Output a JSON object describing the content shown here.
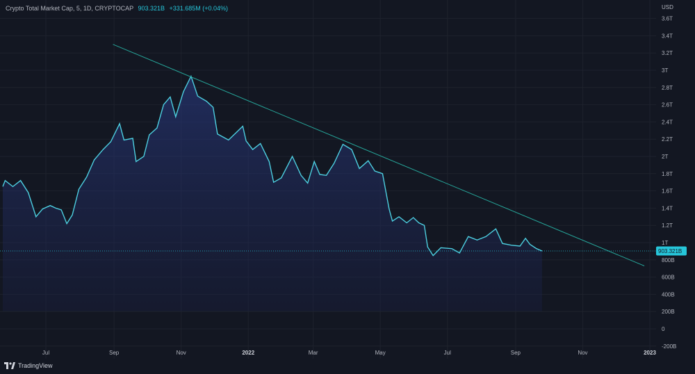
{
  "header": {
    "symbol": "Crypto Total Market Cap, 5, 1D, CRYPTOCAP",
    "value": "903.321B",
    "change": "+331.685M (+0.04%)"
  },
  "brand": {
    "name": "TradingView"
  },
  "colors": {
    "background": "#131722",
    "line": "#4dd0e1",
    "trendline": "#26a69a",
    "price_tag": "#26c6da"
  },
  "chart_data": {
    "type": "area",
    "title": "Crypto Total Market Cap",
    "currency_label": "USD",
    "x_ticks": [
      "Jul",
      "Sep",
      "Nov",
      "2022",
      "Mar",
      "May",
      "Jul",
      "Sep",
      "Nov",
      "2023"
    ],
    "y_ticks": [
      "3.6T",
      "3.4T",
      "3.2T",
      "3T",
      "2.8T",
      "2.6T",
      "2.4T",
      "2.2T",
      "2T",
      "1.8T",
      "1.6T",
      "1.4T",
      "1.2T",
      "1T",
      "800B",
      "600B",
      "400B",
      "200B",
      "0",
      "-200B"
    ],
    "ylim": [
      -200,
      3700
    ],
    "unit": "B USD",
    "last_value_label": "903.321B",
    "last_value": 903.321,
    "series": [
      {
        "values": [
          [
            "2021-05-20",
            1650
          ],
          [
            "2021-05-25",
            1720
          ],
          [
            "2021-06-01",
            1650
          ],
          [
            "2021-06-08",
            1720
          ],
          [
            "2021-06-15",
            1580
          ],
          [
            "2021-06-22",
            1300
          ],
          [
            "2021-06-28",
            1390
          ],
          [
            "2021-07-05",
            1430
          ],
          [
            "2021-07-10",
            1400
          ],
          [
            "2021-07-15",
            1380
          ],
          [
            "2021-07-20",
            1220
          ],
          [
            "2021-07-25",
            1320
          ],
          [
            "2021-07-31",
            1620
          ],
          [
            "2021-08-07",
            1760
          ],
          [
            "2021-08-14",
            1960
          ],
          [
            "2021-08-22",
            2080
          ],
          [
            "2021-08-29",
            2170
          ],
          [
            "2021-09-06",
            2380
          ],
          [
            "2021-09-10",
            2190
          ],
          [
            "2021-09-18",
            2210
          ],
          [
            "2021-09-21",
            1940
          ],
          [
            "2021-09-28",
            2000
          ],
          [
            "2021-10-03",
            2250
          ],
          [
            "2021-10-10",
            2330
          ],
          [
            "2021-10-16",
            2600
          ],
          [
            "2021-10-22",
            2690
          ],
          [
            "2021-10-27",
            2460
          ],
          [
            "2021-11-03",
            2750
          ],
          [
            "2021-11-10",
            2930
          ],
          [
            "2021-11-16",
            2700
          ],
          [
            "2021-11-24",
            2640
          ],
          [
            "2021-11-30",
            2570
          ],
          [
            "2021-12-04",
            2260
          ],
          [
            "2021-12-14",
            2190
          ],
          [
            "2021-12-27",
            2350
          ],
          [
            "2021-12-30",
            2180
          ],
          [
            "2022-01-05",
            2080
          ],
          [
            "2022-01-12",
            2150
          ],
          [
            "2022-01-20",
            1940
          ],
          [
            "2022-01-24",
            1700
          ],
          [
            "2022-01-31",
            1750
          ],
          [
            "2022-02-10",
            2000
          ],
          [
            "2022-02-18",
            1780
          ],
          [
            "2022-02-24",
            1690
          ],
          [
            "2022-03-02",
            1940
          ],
          [
            "2022-03-07",
            1790
          ],
          [
            "2022-03-13",
            1780
          ],
          [
            "2022-03-20",
            1920
          ],
          [
            "2022-03-28",
            2140
          ],
          [
            "2022-04-05",
            2080
          ],
          [
            "2022-04-12",
            1860
          ],
          [
            "2022-04-20",
            1950
          ],
          [
            "2022-04-26",
            1830
          ],
          [
            "2022-05-03",
            1800
          ],
          [
            "2022-05-09",
            1390
          ],
          [
            "2022-05-12",
            1250
          ],
          [
            "2022-05-18",
            1300
          ],
          [
            "2022-05-25",
            1230
          ],
          [
            "2022-05-31",
            1290
          ],
          [
            "2022-06-05",
            1230
          ],
          [
            "2022-06-10",
            1200
          ],
          [
            "2022-06-13",
            950
          ],
          [
            "2022-06-18",
            850
          ],
          [
            "2022-06-25",
            940
          ],
          [
            "2022-07-05",
            930
          ],
          [
            "2022-07-12",
            880
          ],
          [
            "2022-07-20",
            1070
          ],
          [
            "2022-07-28",
            1030
          ],
          [
            "2022-08-05",
            1070
          ],
          [
            "2022-08-14",
            1160
          ],
          [
            "2022-08-20",
            990
          ],
          [
            "2022-08-28",
            970
          ],
          [
            "2022-09-05",
            960
          ],
          [
            "2022-09-10",
            1050
          ],
          [
            "2022-09-14",
            980
          ],
          [
            "2022-09-20",
            930
          ],
          [
            "2022-09-25",
            903
          ]
        ]
      }
    ],
    "trendline": {
      "start": [
        "2021-08-31",
        3300
      ],
      "end": [
        "2022-12-27",
        730
      ]
    }
  }
}
